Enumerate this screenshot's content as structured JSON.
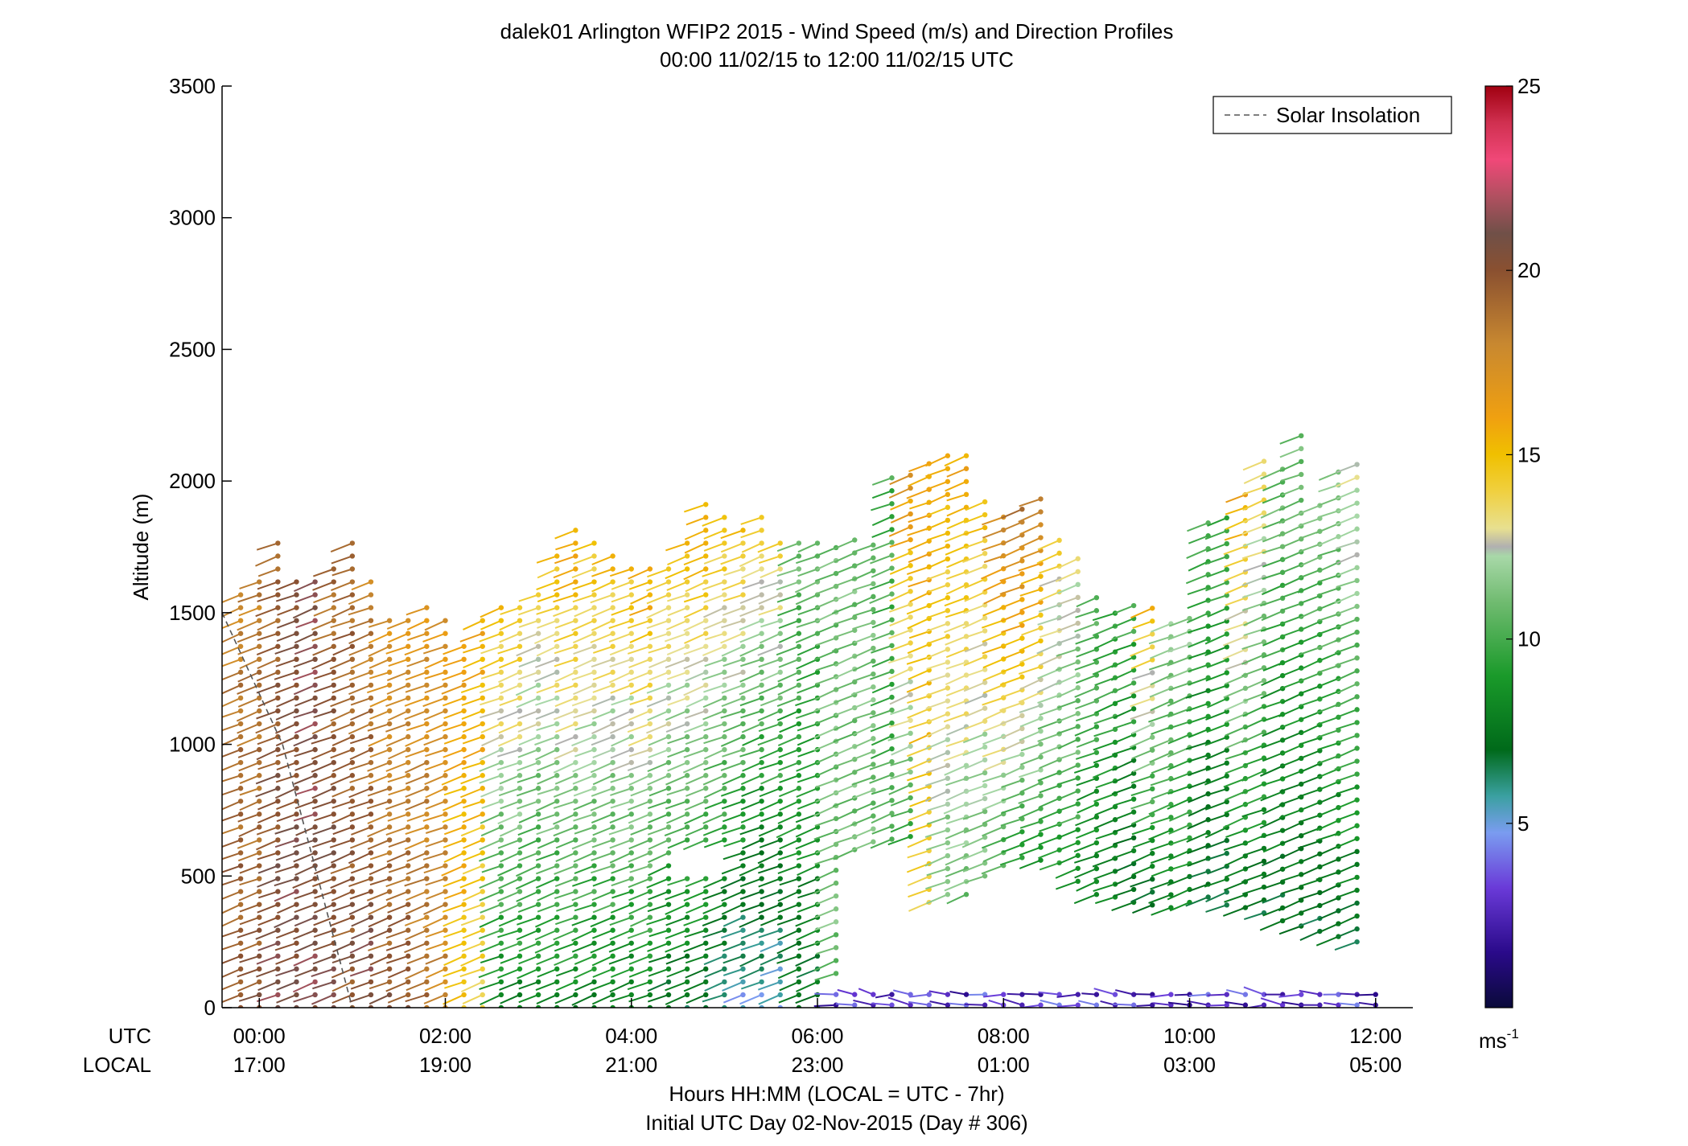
{
  "chart_data": {
    "type": "wind-barb-profile",
    "title": "dalek01 Arlington WFIP2 2015 - Wind Speed (m/s) and Direction Profiles",
    "subtitle": "00:00 11/02/15 to 12:00 11/02/15  UTC",
    "ylabel": "Altitude (m)",
    "xlabel": "Hours HH:MM  (LOCAL = UTC - 7hr)",
    "xlabel2": "Initial UTC Day 02-Nov-2015 (Day # 306)",
    "ylim": [
      0,
      3500
    ],
    "xlim_hours": [
      -0.4,
      12.4
    ],
    "y_ticks": [
      0,
      500,
      1000,
      1500,
      2000,
      2500,
      3000,
      3500
    ],
    "x_ticks": [
      {
        "hour": 0,
        "utc": "00:00",
        "local": "17:00"
      },
      {
        "hour": 2,
        "utc": "02:00",
        "local": "19:00"
      },
      {
        "hour": 4,
        "utc": "04:00",
        "local": "21:00"
      },
      {
        "hour": 6,
        "utc": "06:00",
        "local": "23:00"
      },
      {
        "hour": 8,
        "utc": "08:00",
        "local": "01:00"
      },
      {
        "hour": 10,
        "utc": "10:00",
        "local": "03:00"
      },
      {
        "hour": 12,
        "utc": "12:00",
        "local": "05:00"
      }
    ],
    "row_labels": {
      "utc": "UTC",
      "local": "LOCAL"
    },
    "legend": {
      "label": "Solar Insolation",
      "position": "top-right"
    },
    "colorbar": {
      "ticks": [
        5,
        10,
        15,
        20,
        25
      ],
      "unit": "ms",
      "unit_exp": "-1",
      "range": [
        0,
        25
      ]
    },
    "solar_insolation": [
      [
        -0.4,
        1500
      ],
      [
        0.25,
        1000
      ],
      [
        1.0,
        0
      ]
    ],
    "profiles": [
      {
        "hour": -0.2,
        "top": 1590,
        "bottom": 0,
        "speed_low": 20,
        "speed_high": 18
      },
      {
        "hour": 0.0,
        "top": 1660,
        "bottom": 0,
        "speed_low": 20,
        "speed_high": 18
      },
      {
        "hour": 0.2,
        "top": 1780,
        "bottom": 0,
        "speed_low": 21,
        "speed_high": 19
      },
      {
        "hour": 0.4,
        "top": 1660,
        "bottom": 0,
        "speed_low": 21,
        "speed_high": 20
      },
      {
        "hour": 0.6,
        "top": 1640,
        "bottom": 0,
        "speed_low": 21,
        "speed_high": 21
      },
      {
        "hour": 0.8,
        "top": 1670,
        "bottom": 0,
        "speed_low": 21,
        "speed_high": 19
      },
      {
        "hour": 1.0,
        "top": 1780,
        "bottom": 0,
        "speed_low": 20,
        "speed_high": 19
      },
      {
        "hour": 1.2,
        "top": 1660,
        "bottom": 0,
        "speed_low": 21,
        "speed_high": 18
      },
      {
        "hour": 1.4,
        "top": 1500,
        "bottom": 0,
        "speed_low": 20,
        "speed_high": 17
      },
      {
        "hour": 1.6,
        "top": 1510,
        "bottom": 0,
        "speed_low": 20,
        "speed_high": 17
      },
      {
        "hour": 1.8,
        "top": 1530,
        "bottom": 0,
        "speed_low": 19,
        "speed_high": 17
      },
      {
        "hour": 2.0,
        "top": 1480,
        "bottom": 0,
        "speed_low": 18,
        "speed_high": 17
      },
      {
        "hour": 2.2,
        "top": 1380,
        "bottom": 0,
        "speed_low": 15,
        "speed_high": 16
      },
      {
        "hour": 2.4,
        "top": 1490,
        "bottom": 0,
        "speed_low": 14,
        "speed_high": 16
      },
      {
        "hour": 2.6,
        "top": 1520,
        "bottom": 0,
        "speed_low": 8,
        "speed_high": 15
      },
      {
        "hour": 2.8,
        "top": 1550,
        "bottom": 0,
        "speed_low": 8,
        "speed_high": 15
      },
      {
        "hour": 3.0,
        "top": 1600,
        "bottom": 0,
        "speed_low": 8,
        "speed_high": 14
      },
      {
        "hour": 3.2,
        "top": 1740,
        "bottom": 0,
        "speed_low": 8,
        "speed_high": 15
      },
      {
        "hour": 3.4,
        "top": 1850,
        "bottom": 0,
        "speed_low": 8,
        "speed_high": 16
      },
      {
        "hour": 3.6,
        "top": 1780,
        "bottom": 0,
        "speed_low": 8,
        "speed_high": 15
      },
      {
        "hour": 3.8,
        "top": 1730,
        "bottom": 0,
        "speed_low": 8,
        "speed_high": 15
      },
      {
        "hour": 4.0,
        "top": 1690,
        "bottom": 0,
        "speed_low": 8,
        "speed_high": 15
      },
      {
        "hour": 4.2,
        "top": 1710,
        "bottom": 0,
        "speed_low": 8,
        "speed_high": 16
      },
      {
        "hour": 4.4,
        "top": 1700,
        "bottom": 0,
        "speed_low": 7,
        "speed_high": 15
      },
      {
        "hour": 4.6,
        "top": 1790,
        "bottom": 0,
        "speed_low": 7,
        "speed_high": 15
      },
      {
        "hour": 4.8,
        "top": 1940,
        "bottom": 0,
        "speed_low": 7,
        "speed_high": 16
      },
      {
        "hour": 5.0,
        "top": 1900,
        "bottom": 0,
        "speed_low": 6,
        "speed_high": 15
      },
      {
        "hour": 5.2,
        "top": 1850,
        "bottom": 0,
        "speed_low": 5,
        "speed_high": 15
      },
      {
        "hour": 5.4,
        "top": 1870,
        "bottom": 0,
        "speed_low": 5,
        "speed_high": 14
      },
      {
        "hour": 5.6,
        "top": 1780,
        "bottom": 0,
        "speed_low": 5,
        "speed_high": 14
      },
      {
        "hour": 5.8,
        "top": 1780,
        "bottom": 0,
        "speed_low": 7,
        "speed_high": 11
      },
      {
        "hour": 6.0,
        "top": 1790,
        "bottom": 0,
        "speed_low": 7,
        "speed_high": 11
      },
      {
        "hour": 6.2,
        "top": 1760,
        "bottom": 130,
        "speed_low": 11,
        "speed_high": 11
      },
      {
        "hour": 6.4,
        "top": 1780,
        "bottom": 600,
        "speed_low": 11,
        "speed_high": 11
      },
      {
        "hour": 6.6,
        "top": 1800,
        "bottom": 630,
        "speed_low": 11,
        "speed_high": 11
      },
      {
        "hour": 6.8,
        "top": 2050,
        "bottom": 640,
        "speed_low": 10,
        "speed_high": 10
      },
      {
        "hour": 7.0,
        "top": 2060,
        "bottom": 650,
        "speed_low": 10,
        "speed_high": 17
      },
      {
        "hour": 7.2,
        "top": 2080,
        "bottom": 400,
        "speed_low": 14,
        "speed_high": 16
      },
      {
        "hour": 7.4,
        "top": 2120,
        "bottom": 430,
        "speed_low": 11,
        "speed_high": 16
      },
      {
        "hour": 7.6,
        "top": 2140,
        "bottom": 430,
        "speed_low": 11,
        "speed_high": 16
      },
      {
        "hour": 7.8,
        "top": 1930,
        "bottom": 500,
        "speed_low": 11,
        "speed_high": 15
      },
      {
        "hour": 8.0,
        "top": 1880,
        "bottom": 540,
        "speed_low": 10,
        "speed_high": 18
      },
      {
        "hour": 8.2,
        "top": 1920,
        "bottom": 570,
        "speed_low": 9,
        "speed_high": 19
      },
      {
        "hour": 8.4,
        "top": 1960,
        "bottom": 560,
        "speed_low": 9,
        "speed_high": 18
      },
      {
        "hour": 8.6,
        "top": 1800,
        "bottom": 550,
        "speed_low": 9,
        "speed_high": 14
      },
      {
        "hour": 8.8,
        "top": 1750,
        "bottom": 480,
        "speed_low": 9,
        "speed_high": 13
      },
      {
        "hour": 9.0,
        "top": 1580,
        "bottom": 430,
        "speed_low": 8,
        "speed_high": 11
      },
      {
        "hour": 9.2,
        "top": 1540,
        "bottom": 420,
        "speed_low": 8,
        "speed_high": 10
      },
      {
        "hour": 9.4,
        "top": 1530,
        "bottom": 400,
        "speed_low": 7,
        "speed_high": 10
      },
      {
        "hour": 9.6,
        "top": 1520,
        "bottom": 390,
        "speed_low": 7,
        "speed_high": 15
      },
      {
        "hour": 9.8,
        "top": 1470,
        "bottom": 380,
        "speed_low": 8,
        "speed_high": 12
      },
      {
        "hour": 10.0,
        "top": 1480,
        "bottom": 400,
        "speed_low": 8,
        "speed_high": 12
      },
      {
        "hour": 10.2,
        "top": 1880,
        "bottom": 420,
        "speed_low": 7,
        "speed_high": 10
      },
      {
        "hour": 10.4,
        "top": 1900,
        "bottom": 390,
        "speed_low": 7,
        "speed_high": 10
      },
      {
        "hour": 10.6,
        "top": 1990,
        "bottom": 380,
        "speed_low": 7,
        "speed_high": 16
      },
      {
        "hour": 10.8,
        "top": 2080,
        "bottom": 360,
        "speed_low": 7,
        "speed_high": 14
      },
      {
        "hour": 11.0,
        "top": 2070,
        "bottom": 330,
        "speed_low": 7,
        "speed_high": 11
      },
      {
        "hour": 11.2,
        "top": 2180,
        "bottom": 310,
        "speed_low": 7,
        "speed_high": 11
      },
      {
        "hour": 11.4,
        "top": 1920,
        "bottom": 290,
        "speed_low": 7,
        "speed_high": 11
      },
      {
        "hour": 11.6,
        "top": 2070,
        "bottom": 270,
        "speed_low": 7,
        "speed_high": 12
      },
      {
        "hour": 11.8,
        "top": 2070,
        "bottom": 250,
        "speed_low": 7,
        "speed_high": 13
      }
    ],
    "gaps": [
      {
        "hour_from": 4.5,
        "hour_to": 5.1,
        "alt_from": 500,
        "alt_to": 600
      }
    ],
    "surface_hours_low_speed": [
      6.2,
      12.0
    ]
  }
}
